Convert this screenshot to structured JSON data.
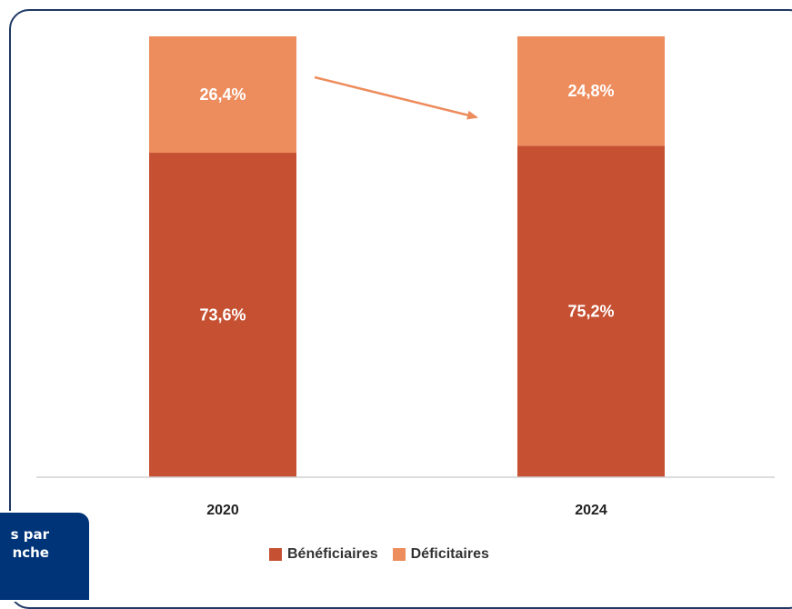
{
  "chart_data": {
    "type": "bar",
    "stacked": true,
    "categories": [
      "2020",
      "2024"
    ],
    "series": [
      {
        "name": "Bénéficiaires",
        "values": [
          73.6,
          75.2
        ],
        "labels": [
          "73,6%",
          "75,2%"
        ],
        "color": "#c65032"
      },
      {
        "name": "Déficitaires",
        "values": [
          26.4,
          24.8
        ],
        "labels": [
          "26,4%",
          "24,8%"
        ],
        "color": "#ed8c5c"
      }
    ],
    "ylim": [
      0,
      100
    ],
    "grid": false,
    "legend": "bottom",
    "annotation": "arrow pointing downward from 2020 to 2024 between the Déficitaires segments"
  },
  "side_tab": {
    "lines": [
      "s par",
      "nche"
    ],
    "color": "#003478"
  },
  "colors": {
    "frame": "#1f3864",
    "arrow": "#ed8c5c",
    "axis": "#d0d0d0"
  }
}
